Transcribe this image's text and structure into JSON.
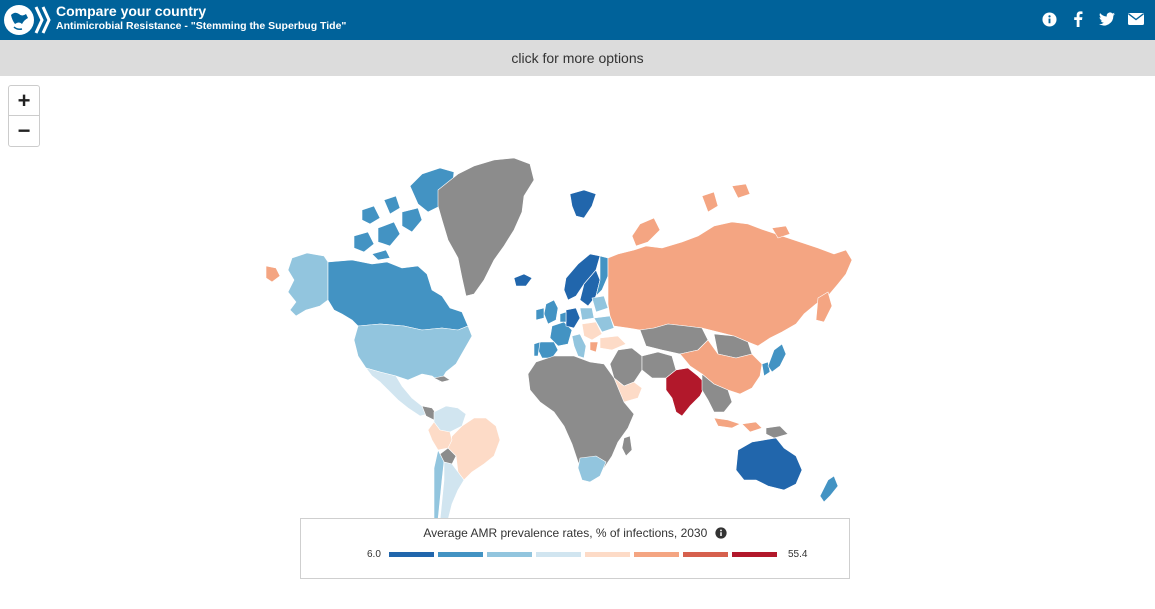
{
  "header": {
    "title": "Compare your country",
    "subtitle": "Antimicrobial Resistance - \"Stemming the Superbug Tide\"",
    "icons": [
      "info-icon",
      "facebook-icon",
      "twitter-icon",
      "email-icon"
    ]
  },
  "options_bar": {
    "label": "click for more options"
  },
  "zoom": {
    "in_label": "+",
    "out_label": "−"
  },
  "legend": {
    "title": "Average AMR prevalence rates, % of infections, 2030",
    "min": "6.0",
    "max": "55.4",
    "colors": [
      "#2166ac",
      "#4393c3",
      "#92c5de",
      "#d1e5f0",
      "#fddbc7",
      "#f4a582",
      "#d6604d",
      "#b2182b"
    ]
  },
  "map_colors": {
    "no_data": "#8c8c8c",
    "dark_blue": "#2166ac",
    "mid_blue": "#4393c3",
    "light_blue": "#92c5de",
    "pale_blue": "#d1e5f0",
    "pale_orange": "#fddbc7",
    "orange": "#f4a582",
    "dark_red": "#b2182b"
  }
}
